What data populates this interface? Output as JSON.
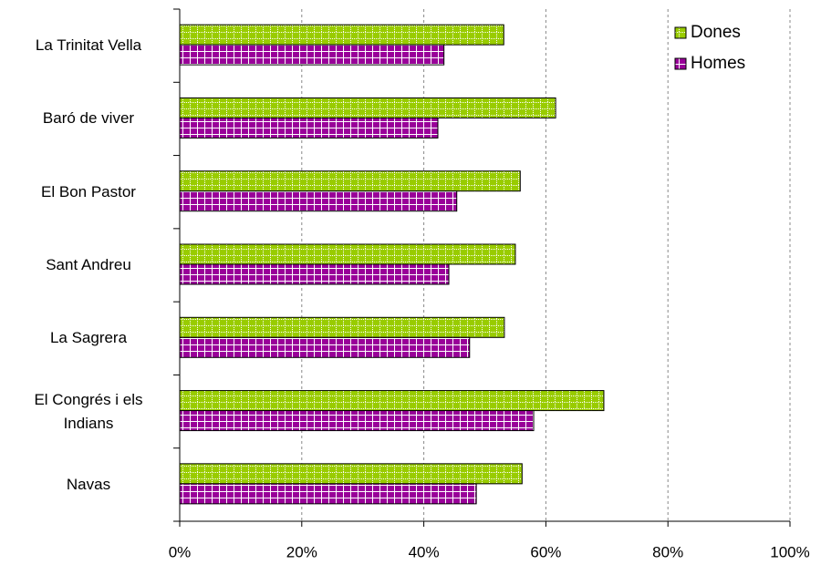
{
  "chart_data": {
    "type": "hbar",
    "categories": [
      "La Trinitat Vella",
      "Baró de viver",
      "El Bon Pastor",
      "Sant Andreu",
      "La Sagrera",
      "El Congrés i els Indians",
      "Navas"
    ],
    "series": [
      {
        "name": "Dones",
        "color": "#99cc00",
        "values": [
          53.1,
          61.6,
          55.8,
          55.0,
          53.2,
          69.5,
          56.1
        ]
      },
      {
        "name": "Homes",
        "color": "#990099",
        "values": [
          43.3,
          42.3,
          45.4,
          44.1,
          47.5,
          58.0,
          48.6
        ]
      }
    ],
    "xlim": [
      0,
      100
    ],
    "xticks": [
      {
        "value": 0,
        "label": "0%"
      },
      {
        "value": 20,
        "label": "20%"
      },
      {
        "value": 40,
        "label": "40%"
      },
      {
        "value": 60,
        "label": "60%"
      },
      {
        "value": 80,
        "label": "80%"
      },
      {
        "value": 100,
        "label": "100%"
      }
    ],
    "grid": true,
    "legend": "upper right"
  }
}
